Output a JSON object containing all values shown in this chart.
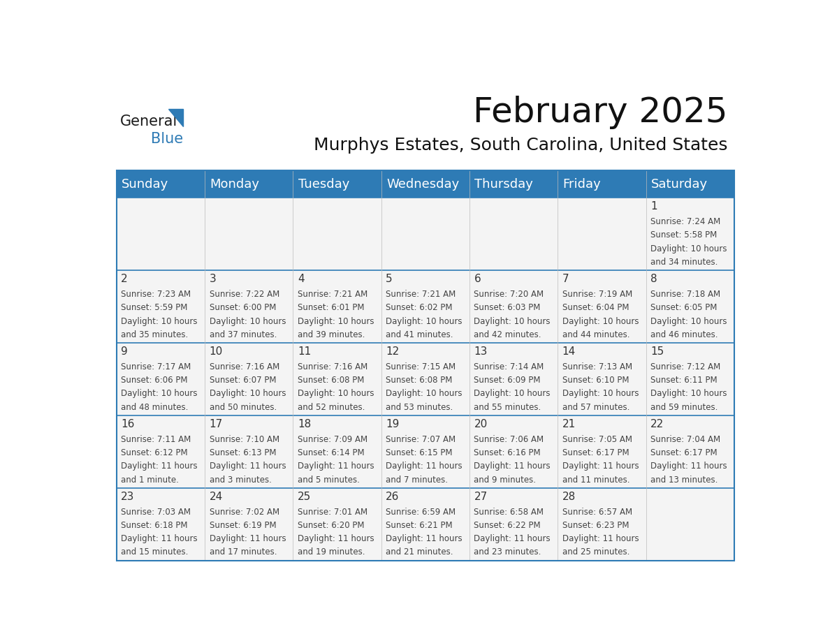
{
  "title": "February 2025",
  "subtitle": "Murphys Estates, South Carolina, United States",
  "header_bg": "#2E7BB5",
  "header_text": "#FFFFFF",
  "border_color": "#2E7BB5",
  "day_headers": [
    "Sunday",
    "Monday",
    "Tuesday",
    "Wednesday",
    "Thursday",
    "Friday",
    "Saturday"
  ],
  "days": [
    {
      "day": 1,
      "col": 6,
      "row": 0,
      "sunrise": "7:24 AM",
      "sunset": "5:58 PM",
      "daylight_hours": "10 hours",
      "daylight_mins": "and 34 minutes."
    },
    {
      "day": 2,
      "col": 0,
      "row": 1,
      "sunrise": "7:23 AM",
      "sunset": "5:59 PM",
      "daylight_hours": "10 hours",
      "daylight_mins": "and 35 minutes."
    },
    {
      "day": 3,
      "col": 1,
      "row": 1,
      "sunrise": "7:22 AM",
      "sunset": "6:00 PM",
      "daylight_hours": "10 hours",
      "daylight_mins": "and 37 minutes."
    },
    {
      "day": 4,
      "col": 2,
      "row": 1,
      "sunrise": "7:21 AM",
      "sunset": "6:01 PM",
      "daylight_hours": "10 hours",
      "daylight_mins": "and 39 minutes."
    },
    {
      "day": 5,
      "col": 3,
      "row": 1,
      "sunrise": "7:21 AM",
      "sunset": "6:02 PM",
      "daylight_hours": "10 hours",
      "daylight_mins": "and 41 minutes."
    },
    {
      "day": 6,
      "col": 4,
      "row": 1,
      "sunrise": "7:20 AM",
      "sunset": "6:03 PM",
      "daylight_hours": "10 hours",
      "daylight_mins": "and 42 minutes."
    },
    {
      "day": 7,
      "col": 5,
      "row": 1,
      "sunrise": "7:19 AM",
      "sunset": "6:04 PM",
      "daylight_hours": "10 hours",
      "daylight_mins": "and 44 minutes."
    },
    {
      "day": 8,
      "col": 6,
      "row": 1,
      "sunrise": "7:18 AM",
      "sunset": "6:05 PM",
      "daylight_hours": "10 hours",
      "daylight_mins": "and 46 minutes."
    },
    {
      "day": 9,
      "col": 0,
      "row": 2,
      "sunrise": "7:17 AM",
      "sunset": "6:06 PM",
      "daylight_hours": "10 hours",
      "daylight_mins": "and 48 minutes."
    },
    {
      "day": 10,
      "col": 1,
      "row": 2,
      "sunrise": "7:16 AM",
      "sunset": "6:07 PM",
      "daylight_hours": "10 hours",
      "daylight_mins": "and 50 minutes."
    },
    {
      "day": 11,
      "col": 2,
      "row": 2,
      "sunrise": "7:16 AM",
      "sunset": "6:08 PM",
      "daylight_hours": "10 hours",
      "daylight_mins": "and 52 minutes."
    },
    {
      "day": 12,
      "col": 3,
      "row": 2,
      "sunrise": "7:15 AM",
      "sunset": "6:08 PM",
      "daylight_hours": "10 hours",
      "daylight_mins": "and 53 minutes."
    },
    {
      "day": 13,
      "col": 4,
      "row": 2,
      "sunrise": "7:14 AM",
      "sunset": "6:09 PM",
      "daylight_hours": "10 hours",
      "daylight_mins": "and 55 minutes."
    },
    {
      "day": 14,
      "col": 5,
      "row": 2,
      "sunrise": "7:13 AM",
      "sunset": "6:10 PM",
      "daylight_hours": "10 hours",
      "daylight_mins": "and 57 minutes."
    },
    {
      "day": 15,
      "col": 6,
      "row": 2,
      "sunrise": "7:12 AM",
      "sunset": "6:11 PM",
      "daylight_hours": "10 hours",
      "daylight_mins": "and 59 minutes."
    },
    {
      "day": 16,
      "col": 0,
      "row": 3,
      "sunrise": "7:11 AM",
      "sunset": "6:12 PM",
      "daylight_hours": "11 hours",
      "daylight_mins": "and 1 minute."
    },
    {
      "day": 17,
      "col": 1,
      "row": 3,
      "sunrise": "7:10 AM",
      "sunset": "6:13 PM",
      "daylight_hours": "11 hours",
      "daylight_mins": "and 3 minutes."
    },
    {
      "day": 18,
      "col": 2,
      "row": 3,
      "sunrise": "7:09 AM",
      "sunset": "6:14 PM",
      "daylight_hours": "11 hours",
      "daylight_mins": "and 5 minutes."
    },
    {
      "day": 19,
      "col": 3,
      "row": 3,
      "sunrise": "7:07 AM",
      "sunset": "6:15 PM",
      "daylight_hours": "11 hours",
      "daylight_mins": "and 7 minutes."
    },
    {
      "day": 20,
      "col": 4,
      "row": 3,
      "sunrise": "7:06 AM",
      "sunset": "6:16 PM",
      "daylight_hours": "11 hours",
      "daylight_mins": "and 9 minutes."
    },
    {
      "day": 21,
      "col": 5,
      "row": 3,
      "sunrise": "7:05 AM",
      "sunset": "6:17 PM",
      "daylight_hours": "11 hours",
      "daylight_mins": "and 11 minutes."
    },
    {
      "day": 22,
      "col": 6,
      "row": 3,
      "sunrise": "7:04 AM",
      "sunset": "6:17 PM",
      "daylight_hours": "11 hours",
      "daylight_mins": "and 13 minutes."
    },
    {
      "day": 23,
      "col": 0,
      "row": 4,
      "sunrise": "7:03 AM",
      "sunset": "6:18 PM",
      "daylight_hours": "11 hours",
      "daylight_mins": "and 15 minutes."
    },
    {
      "day": 24,
      "col": 1,
      "row": 4,
      "sunrise": "7:02 AM",
      "sunset": "6:19 PM",
      "daylight_hours": "11 hours",
      "daylight_mins": "and 17 minutes."
    },
    {
      "day": 25,
      "col": 2,
      "row": 4,
      "sunrise": "7:01 AM",
      "sunset": "6:20 PM",
      "daylight_hours": "11 hours",
      "daylight_mins": "and 19 minutes."
    },
    {
      "day": 26,
      "col": 3,
      "row": 4,
      "sunrise": "6:59 AM",
      "sunset": "6:21 PM",
      "daylight_hours": "11 hours",
      "daylight_mins": "and 21 minutes."
    },
    {
      "day": 27,
      "col": 4,
      "row": 4,
      "sunrise": "6:58 AM",
      "sunset": "6:22 PM",
      "daylight_hours": "11 hours",
      "daylight_mins": "and 23 minutes."
    },
    {
      "day": 28,
      "col": 5,
      "row": 4,
      "sunrise": "6:57 AM",
      "sunset": "6:23 PM",
      "daylight_hours": "11 hours",
      "daylight_mins": "and 25 minutes."
    }
  ],
  "num_rows": 5,
  "num_cols": 7,
  "title_fontsize": 36,
  "subtitle_fontsize": 18,
  "header_fontsize": 13,
  "day_num_fontsize": 11,
  "cell_text_fontsize": 8.5,
  "logo_general_color": "#1a1a1a",
  "logo_blue_color": "#2E7BB5"
}
